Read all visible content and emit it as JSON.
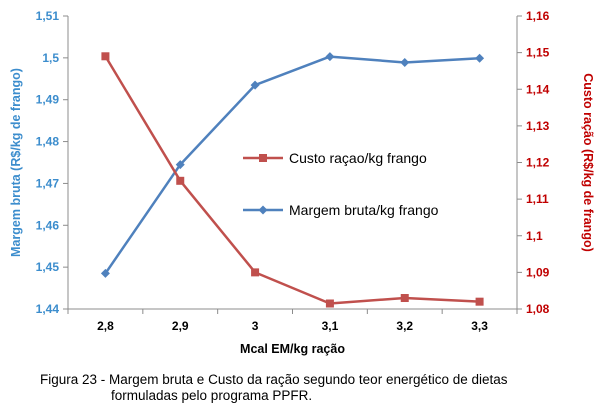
{
  "chart_data": {
    "type": "line",
    "x": [
      "2,8",
      "2,9",
      "3",
      "3,1",
      "3,2",
      "3,3"
    ],
    "xlabel": "Mcal EM/kg ração",
    "series": [
      {
        "name": "Margem bruta/kg frango",
        "axis": "left",
        "color": "#4f81bd",
        "marker": "diamond",
        "values": [
          1.4485,
          1.4745,
          1.4935,
          1.5003,
          1.4989,
          1.4999
        ]
      },
      {
        "name": "Custo raçao/kg frango",
        "axis": "right",
        "color": "#c0504d",
        "marker": "square",
        "values": [
          1.149,
          1.115,
          1.09,
          1.0815,
          1.083,
          1.082
        ]
      }
    ],
    "y_left": {
      "label": "Margem bruta (R$/kg de frango)",
      "color": "#3c8dcd",
      "ylim": [
        1.44,
        1.51
      ],
      "ticks": [
        1.44,
        1.45,
        1.46,
        1.47,
        1.48,
        1.49,
        1.5,
        1.51
      ],
      "tick_labels": [
        "1,44",
        "1,45",
        "1,46",
        "1,47",
        "1,48",
        "1,49",
        "1,5",
        "1,51"
      ]
    },
    "y_right": {
      "label": "Custo ração (R$/kg de frango)",
      "color": "#c00000",
      "ylim": [
        1.08,
        1.16
      ],
      "ticks": [
        1.08,
        1.09,
        1.1,
        1.11,
        1.12,
        1.13,
        1.14,
        1.15,
        1.16
      ],
      "tick_labels": [
        "1,08",
        "1,09",
        "1,1",
        "1,11",
        "1,12",
        "1,13",
        "1,14",
        "1,15",
        "1,16"
      ]
    },
    "legend_position": "center-right",
    "grid": false
  },
  "caption": {
    "line1": "Figura 23 - Margem bruta e Custo da ração segundo teor energético de dietas",
    "line2": "formuladas pelo programa PPFR."
  }
}
